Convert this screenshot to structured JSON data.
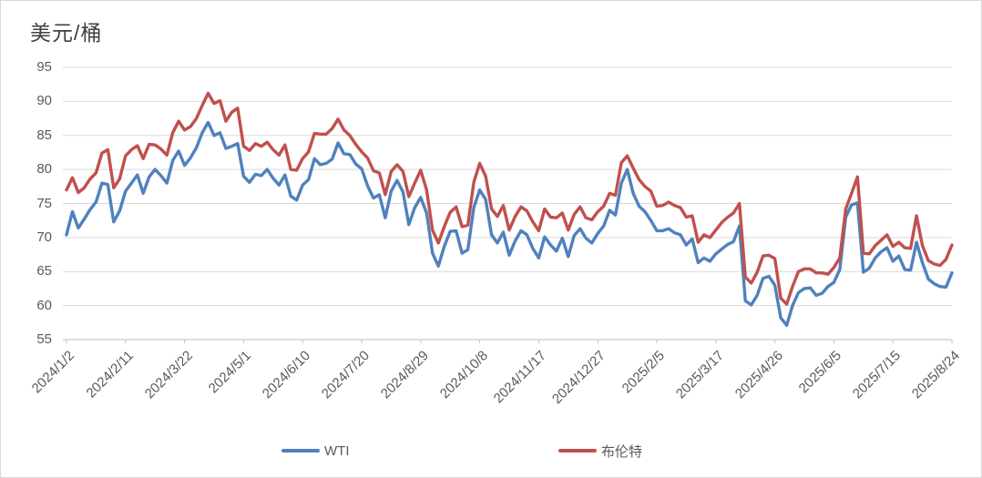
{
  "title": "美元/桶",
  "colors": {
    "wti": "#4F81BD",
    "brent": "#C0504D",
    "gridline": "#D9D9D9",
    "axis": "#BFBFBF",
    "tick_label": "#595959",
    "title_text": "#3F3F3F",
    "background": "#FFFFFF",
    "border": "#D9D9D9"
  },
  "legend": {
    "items": [
      {
        "label": "WTI",
        "color": "#4F81BD"
      },
      {
        "label": "布伦特",
        "color": "#C0504D"
      }
    ]
  },
  "chart_data": {
    "type": "line",
    "title": "美元/桶",
    "xlabel": "",
    "ylabel": "美元/桶",
    "ylim": [
      55,
      95
    ],
    "y_ticks": [
      95,
      90,
      85,
      80,
      75,
      70,
      65,
      60,
      55
    ],
    "grid": "horizontal",
    "legend_position": "bottom",
    "x_start_date": "2024/1/2",
    "x_end_date": "2025/8/24",
    "x_interval_days": 4,
    "x_tick_labels": [
      "2024/1/2",
      "2024/2/11",
      "2024/3/22",
      "2024/5/1",
      "2024/6/10",
      "2024/7/20",
      "2024/8/29",
      "2024/10/8",
      "2024/11/17",
      "2024/12/27",
      "2025/2/5",
      "2025/3/17",
      "2025/4/26",
      "2025/6/5",
      "2025/7/15",
      "2025/8/24"
    ],
    "series": [
      {
        "name": "WTI",
        "color": "#4F81BD",
        "values": [
          70.4,
          73.8,
          71.4,
          72.7,
          74.1,
          75.2,
          78.0,
          77.8,
          72.3,
          73.9,
          76.8,
          78.0,
          79.2,
          76.5,
          78.9,
          80.0,
          79.1,
          78.0,
          81.3,
          82.7,
          80.6,
          81.7,
          83.2,
          85.4,
          86.9,
          85.0,
          85.4,
          83.1,
          83.4,
          83.8,
          79.0,
          78.1,
          79.3,
          79.1,
          80.0,
          78.7,
          77.7,
          79.2,
          76.1,
          75.5,
          77.7,
          78.5,
          81.6,
          80.7,
          80.9,
          81.5,
          83.9,
          82.3,
          82.2,
          80.8,
          80.1,
          77.6,
          75.8,
          76.3,
          72.9,
          76.8,
          78.4,
          76.7,
          71.9,
          74.4,
          75.9,
          73.6,
          67.7,
          65.8,
          68.7,
          70.9,
          71.0,
          67.7,
          68.2,
          74.4,
          77.0,
          75.6,
          70.4,
          69.2,
          70.8,
          67.4,
          69.5,
          71.0,
          70.4,
          68.4,
          67.0,
          70.1,
          68.9,
          68.0,
          69.9,
          67.2,
          70.3,
          71.3,
          69.9,
          69.2,
          70.6,
          71.7,
          74.0,
          73.3,
          78.0,
          80.0,
          76.5,
          74.6,
          73.8,
          72.5,
          71.0,
          71.0,
          71.3,
          70.7,
          70.4,
          68.9,
          69.8,
          66.3,
          67.0,
          66.5,
          67.6,
          68.3,
          69.0,
          69.4,
          71.7,
          60.7,
          60.1,
          61.5,
          64.0,
          64.3,
          63.0,
          58.2,
          57.1,
          60.0,
          61.9,
          62.5,
          62.6,
          61.5,
          61.8,
          62.8,
          63.4,
          65.3,
          73.0,
          74.8,
          75.1,
          64.9,
          65.5,
          67.0,
          67.9,
          68.5,
          66.5,
          67.3,
          65.3,
          65.2,
          69.3,
          66.3,
          63.9,
          63.2,
          62.8,
          62.7,
          64.8
        ]
      },
      {
        "name": "布伦特",
        "color": "#C0504D",
        "values": [
          77.0,
          78.8,
          76.6,
          77.3,
          78.6,
          79.5,
          82.4,
          82.9,
          77.3,
          78.6,
          82.0,
          82.9,
          83.5,
          81.6,
          83.7,
          83.6,
          83.0,
          82.1,
          85.4,
          87.1,
          85.8,
          86.3,
          87.5,
          89.4,
          91.2,
          89.7,
          90.1,
          87.1,
          88.4,
          89.0,
          83.4,
          82.8,
          83.8,
          83.4,
          84.0,
          82.9,
          82.1,
          83.6,
          80.0,
          79.9,
          81.6,
          82.6,
          85.3,
          85.2,
          85.2,
          86.0,
          87.4,
          85.8,
          85.0,
          83.7,
          82.6,
          81.7,
          79.8,
          79.5,
          76.3,
          79.7,
          80.7,
          79.7,
          76.0,
          78.0,
          79.9,
          77.0,
          71.1,
          69.2,
          71.6,
          73.7,
          74.5,
          71.6,
          71.8,
          78.1,
          80.9,
          79.0,
          74.2,
          73.1,
          74.7,
          71.1,
          73.1,
          74.5,
          73.9,
          72.3,
          71.0,
          74.2,
          73.0,
          72.9,
          73.6,
          71.1,
          73.4,
          74.5,
          72.9,
          72.6,
          73.8,
          74.6,
          76.5,
          76.2,
          81.0,
          82.0,
          80.2,
          78.5,
          77.5,
          76.8,
          74.6,
          74.7,
          75.2,
          74.7,
          74.4,
          73.0,
          73.2,
          69.3,
          70.4,
          70.0,
          71.1,
          72.2,
          73.0,
          73.6,
          75.0,
          64.2,
          63.3,
          64.9,
          67.3,
          67.4,
          66.9,
          61.1,
          60.2,
          62.8,
          65.0,
          65.4,
          65.4,
          64.8,
          64.8,
          64.6,
          65.6,
          67.0,
          74.2,
          76.5,
          78.9,
          67.7,
          67.6,
          68.8,
          69.6,
          70.4,
          68.7,
          69.3,
          68.5,
          68.4,
          73.2,
          68.8,
          66.6,
          66.1,
          65.9,
          66.8,
          68.9
        ]
      }
    ]
  }
}
